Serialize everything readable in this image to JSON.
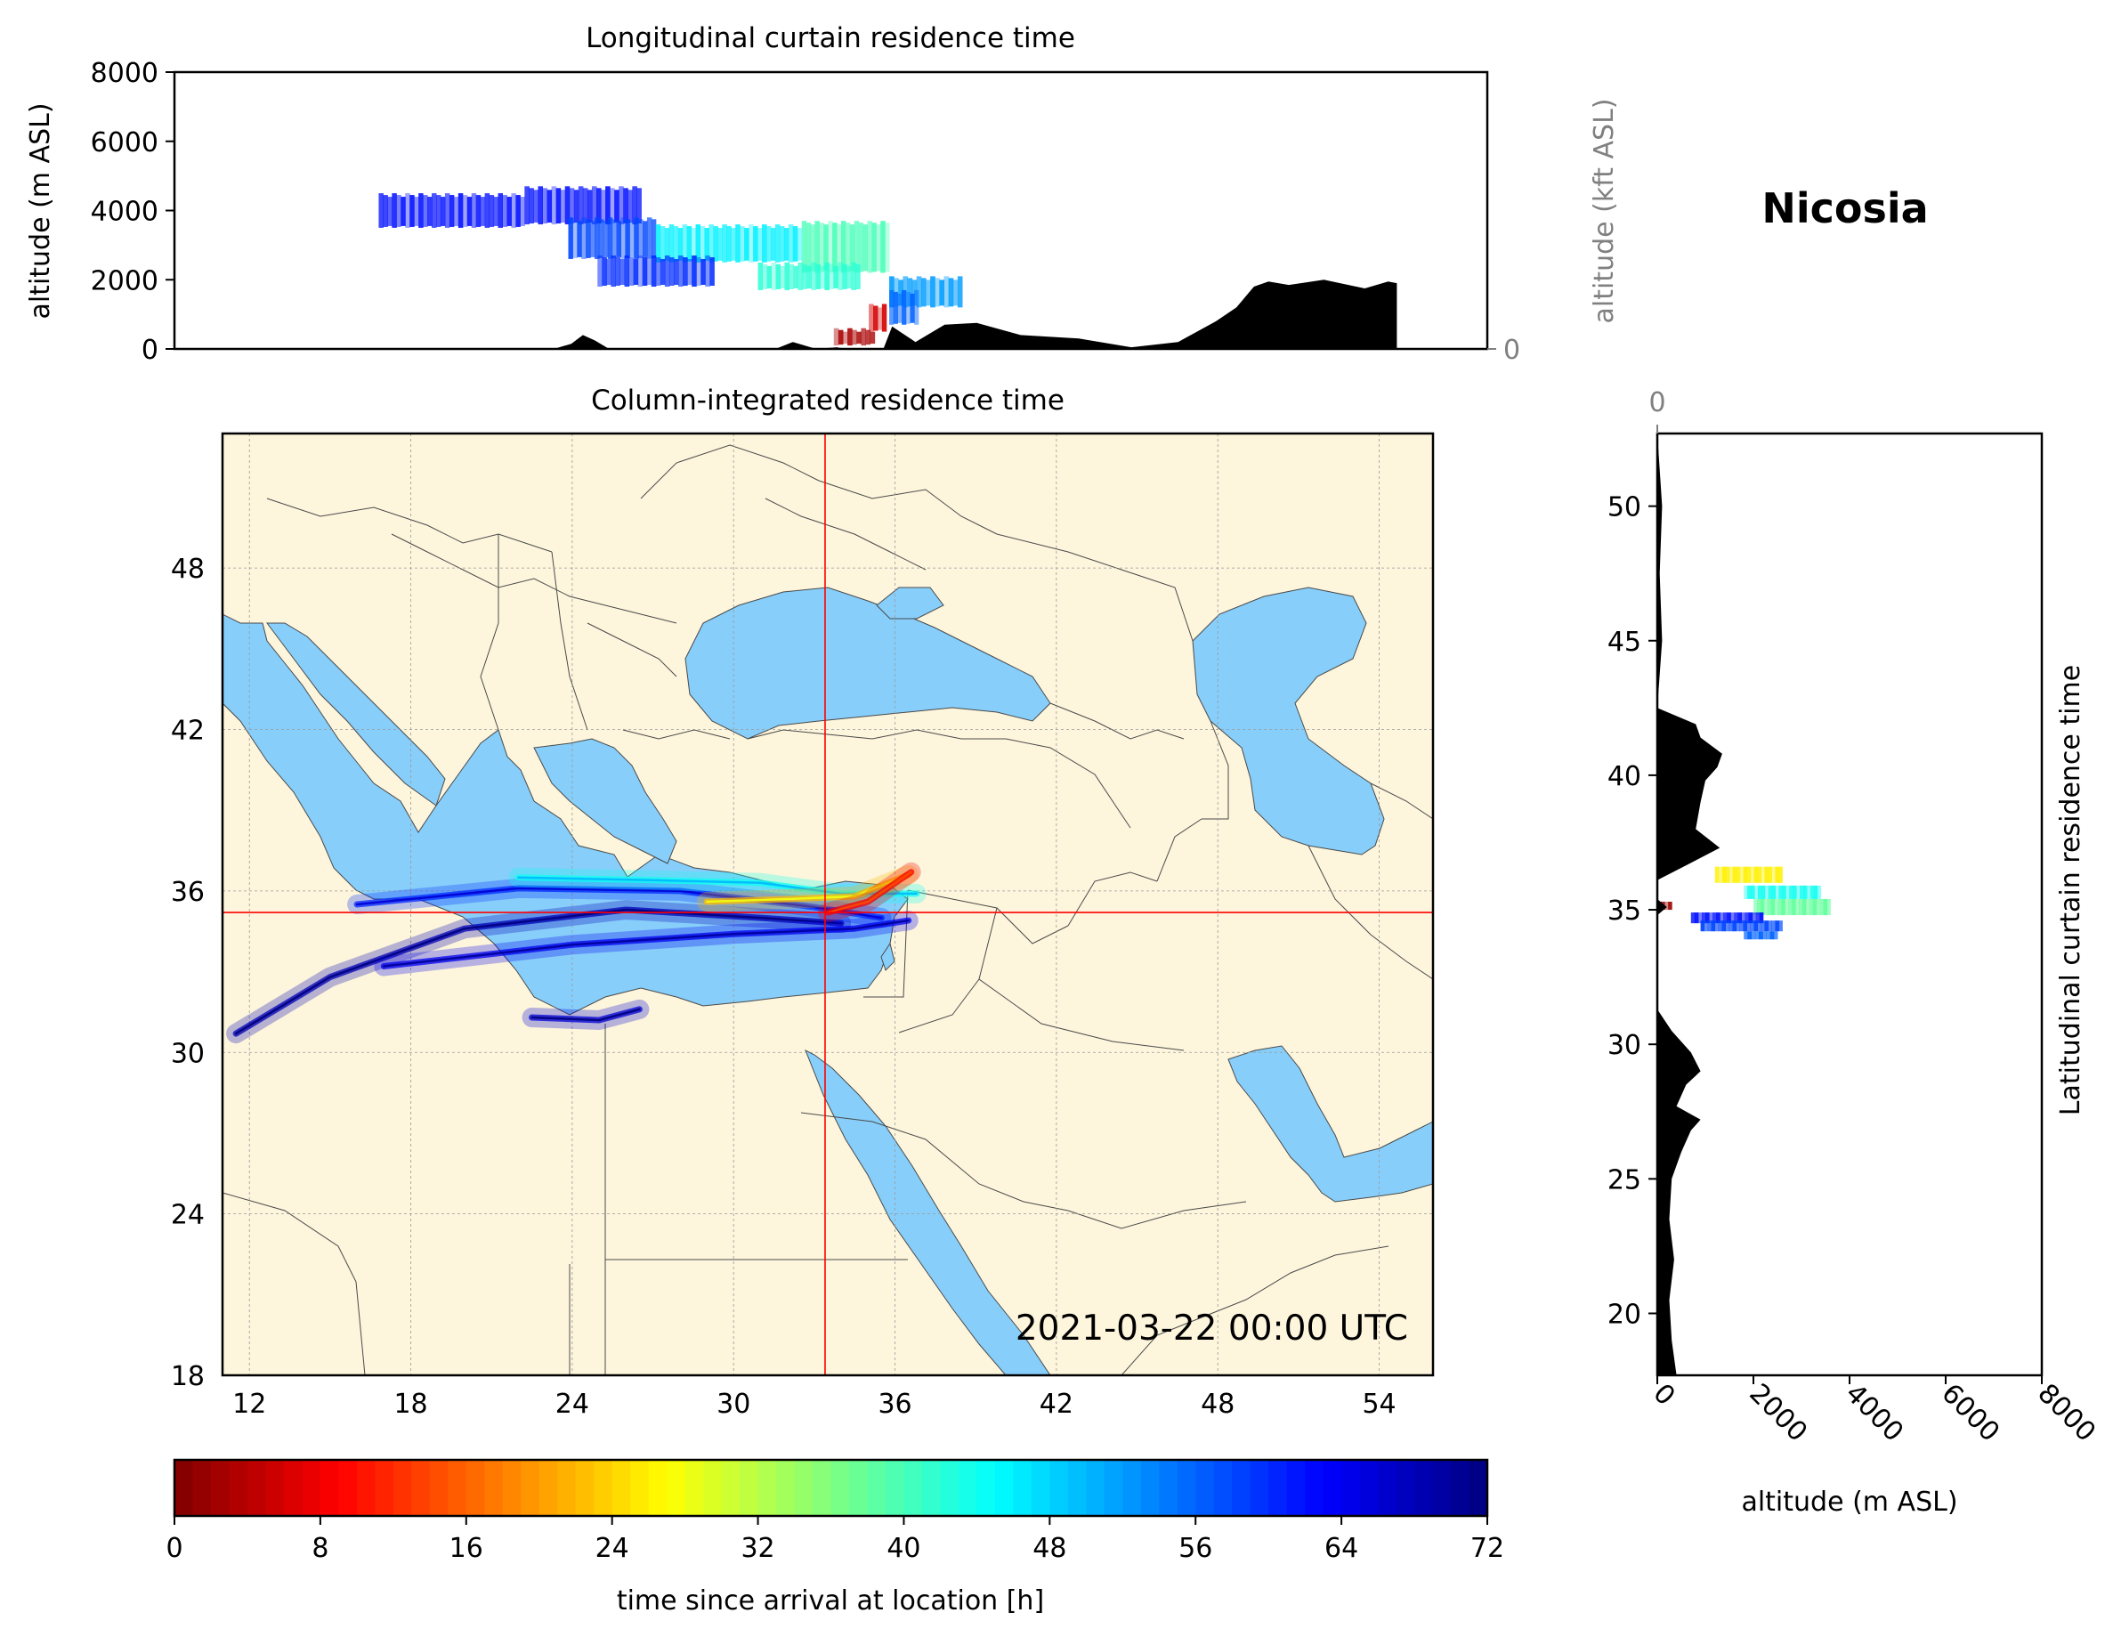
{
  "station": "Nicosia",
  "timestamp": "2021-03-22 00:00 UTC",
  "colors": {
    "land": "#fdf5dc",
    "sea": "#87cefa",
    "crosshair": "#ff0000",
    "terrain": "#000000"
  },
  "chart_data": [
    {
      "type": "heatmap",
      "name": "longitudinal_curtain",
      "title": "Longitudinal curtain residence time",
      "ylabel": "altitude (m ASL)",
      "ylabel_right": "altitude (kft ASL)",
      "ylim": [
        0,
        8000
      ],
      "yticks": [
        "0",
        "2000",
        "4000",
        "6000",
        "8000"
      ],
      "ylim_right_kft": [
        0,
        100
      ],
      "yticks_right": [
        "0",
        "50",
        "100"
      ],
      "xlim_lon": [
        11,
        56
      ],
      "terrain_profile": {
        "lon": [
          24.0,
          24.6,
          25.0,
          25.4,
          25.9,
          31.6,
          32.2,
          33.0,
          33.7,
          34.0,
          35.3,
          35.6,
          36.4,
          37.4,
          38.5,
          40.0,
          42.0,
          43.8,
          45.4,
          46.7,
          47.4,
          48.0,
          48.5,
          49.2,
          50.4,
          51.8,
          52.6,
          52.9
        ],
        "alt": [
          0,
          150,
          400,
          250,
          0,
          0,
          200,
          0,
          50,
          0,
          0,
          650,
          200,
          700,
          750,
          400,
          300,
          50,
          200,
          800,
          1200,
          1800,
          1950,
          1850,
          2000,
          1750,
          1950,
          1900
        ]
      },
      "plume_cells": [
        {
          "lon_range": [
            18.0,
            23.0
          ],
          "alt_range": [
            3500,
            4500
          ],
          "hours": 62
        },
        {
          "lon_range": [
            23.0,
            27.0
          ],
          "alt_range": [
            3600,
            4700
          ],
          "hours": 62
        },
        {
          "lon_range": [
            24.5,
            27.5
          ],
          "alt_range": [
            2600,
            3800
          ],
          "hours": 58
        },
        {
          "lon_range": [
            27.5,
            32.5
          ],
          "alt_range": [
            2500,
            3600
          ],
          "hours": 46
        },
        {
          "lon_range": [
            32.5,
            35.5
          ],
          "alt_range": [
            2200,
            3700
          ],
          "hours": 40
        },
        {
          "lon_range": [
            25.5,
            29.5
          ],
          "alt_range": [
            1800,
            2700
          ],
          "hours": 60
        },
        {
          "lon_range": [
            31.0,
            34.5
          ],
          "alt_range": [
            1700,
            2500
          ],
          "hours": 42
        },
        {
          "lon_range": [
            35.5,
            38.0
          ],
          "alt_range": [
            1200,
            2100
          ],
          "hours": 52
        },
        {
          "lon_range": [
            35.5,
            36.5
          ],
          "alt_range": [
            700,
            1700
          ],
          "hours": 56
        },
        {
          "lon_range": [
            34.8,
            35.4
          ],
          "alt_range": [
            500,
            1300
          ],
          "hours": 6
        },
        {
          "lon_range": [
            33.6,
            35.0
          ],
          "alt_range": [
            100,
            600
          ],
          "hours": 3
        }
      ]
    },
    {
      "type": "heatmap",
      "name": "column_integrated_map",
      "title": "Column-integrated residence time",
      "xlim_lon": [
        11,
        56
      ],
      "ylim_lat": [
        18,
        53
      ],
      "xticks": [
        "12",
        "18",
        "24",
        "30",
        "36",
        "42",
        "48",
        "54"
      ],
      "yticks": [
        "18",
        "24",
        "30",
        "36",
        "42",
        "48"
      ],
      "crosshair": {
        "lon": 33.4,
        "lat": 35.2
      },
      "plume_tracks": [
        {
          "lon": [
            11.5,
            15.0,
            20.0,
            26.0,
            31.0,
            34.0
          ],
          "lat": [
            30.7,
            32.8,
            34.6,
            35.3,
            35.0,
            34.8
          ],
          "hours": 68
        },
        {
          "lon": [
            16.0,
            22.0,
            28.0,
            33.0,
            35.5
          ],
          "lat": [
            35.5,
            36.1,
            36.0,
            35.4,
            35.0
          ],
          "hours": 60
        },
        {
          "lon": [
            17.0,
            24.0,
            30.0,
            34.5,
            36.5
          ],
          "lat": [
            33.2,
            34.0,
            34.4,
            34.6,
            34.9
          ],
          "hours": 64
        },
        {
          "lon": [
            22.0,
            27.0,
            31.0,
            34.0,
            36.8
          ],
          "lat": [
            36.5,
            36.4,
            36.3,
            35.9,
            35.9
          ],
          "hours": 44
        },
        {
          "lon": [
            29.0,
            32.0,
            34.5,
            36.5
          ],
          "lat": [
            35.6,
            35.7,
            35.8,
            36.6
          ],
          "hours": 22
        },
        {
          "lon": [
            33.5,
            35.0,
            36.6
          ],
          "lat": [
            35.2,
            35.6,
            36.7
          ],
          "hours": 8
        },
        {
          "lon": [
            22.5,
            25.0,
            26.5
          ],
          "lat": [
            31.3,
            31.2,
            31.6
          ],
          "hours": 66
        }
      ]
    },
    {
      "type": "heatmap",
      "name": "latitudinal_curtain",
      "ylabel": "Latitudinal curtain residence time",
      "xlabel": "altitude (m ASL)",
      "xlim": [
        0,
        8000
      ],
      "xticks": [
        "0",
        "2000",
        "4000",
        "6000",
        "8000"
      ],
      "xticks_top_kft": [
        "0",
        "50",
        "100"
      ],
      "ylim_lat": [
        17.7,
        52.7
      ],
      "yticks": [
        "20",
        "25",
        "30",
        "35",
        "40",
        "45",
        "50"
      ],
      "terrain_profile": {
        "lat": [
          17.7,
          19.0,
          20.5,
          22.0,
          23.5,
          25.0,
          26.0,
          26.8,
          27.2,
          27.7,
          28.5,
          29.0,
          29.7,
          30.5,
          31.3,
          33.0,
          34.8,
          35.1,
          35.4,
          36.1,
          36.7,
          37.3,
          38.0,
          39.0,
          39.8,
          40.3,
          40.8,
          41.4,
          41.9,
          42.5,
          45.0,
          47.5,
          50.0,
          52.7
        ],
        "alt": [
          400,
          300,
          250,
          350,
          250,
          300,
          500,
          700,
          900,
          400,
          600,
          900,
          700,
          300,
          0,
          0,
          0,
          200,
          0,
          0,
          650,
          1300,
          800,
          900,
          1000,
          1250,
          1350,
          900,
          800,
          0,
          100,
          50,
          100,
          0
        ]
      },
      "plume_cells": [
        {
          "lat_range": [
            36.0,
            36.6
          ],
          "alt_range": [
            1200,
            2600
          ],
          "hours": 26
        },
        {
          "lat_range": [
            35.4,
            35.9
          ],
          "alt_range": [
            1800,
            3400
          ],
          "hours": 44
        },
        {
          "lat_range": [
            34.8,
            35.4
          ],
          "alt_range": [
            2000,
            3600
          ],
          "hours": 38
        },
        {
          "lat_range": [
            34.5,
            34.9
          ],
          "alt_range": [
            700,
            2200
          ],
          "hours": 62
        },
        {
          "lat_range": [
            34.2,
            34.6
          ],
          "alt_range": [
            900,
            2600
          ],
          "hours": 58
        },
        {
          "lat_range": [
            33.9,
            34.2
          ],
          "alt_range": [
            1800,
            2500
          ],
          "hours": 56
        },
        {
          "lat_range": [
            35.0,
            35.3
          ],
          "alt_range": [
            0,
            300
          ],
          "hours": 2
        }
      ]
    },
    {
      "type": "colorbar",
      "name": "colorbar",
      "xlabel": "time since arrival at location [h]",
      "range": [
        0,
        72
      ],
      "ticks": [
        "0",
        "8",
        "16",
        "24",
        "32",
        "40",
        "48",
        "56",
        "64",
        "72"
      ]
    }
  ]
}
